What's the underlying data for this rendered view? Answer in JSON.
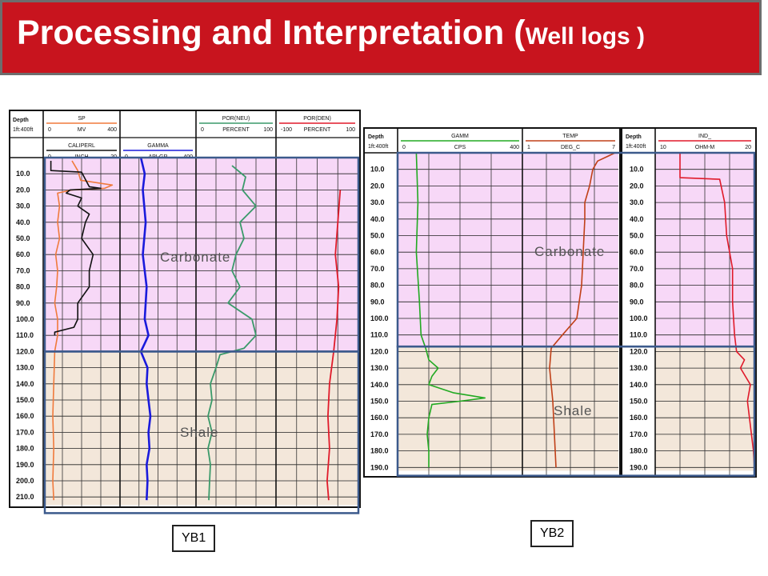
{
  "title": {
    "main": "Processing and Interpretation",
    "paren_open": " (",
    "sub": "Well logs )"
  },
  "labels": {
    "yb1": "YB1",
    "yb2": "YB2"
  },
  "colors": {
    "title_bg": "#c8141e",
    "carbonate_zone": "#f7d8f7",
    "shale_zone": "#f3e7da",
    "zone_box": "#3c5a8c",
    "sp": "#f07a3c",
    "caliper": "#111111",
    "gamma_yb1": "#1a1adc",
    "por_neu": "#3a9a6a",
    "por_den": "#e01a2a",
    "gamma_yb2": "#22aa22",
    "temp": "#c04018",
    "ind": "#e01a2a"
  },
  "chart_data": [
    {
      "type": "line",
      "name": "YB1",
      "depth_unit": "ft",
      "depth_labels": [
        "10.0",
        "20.0",
        "30.0",
        "40.0",
        "50.0",
        "60.0",
        "70.0",
        "80.0",
        "90.0",
        "100.0",
        "110.0",
        "120.0",
        "130.0",
        "140.0",
        "150.0",
        "160.0",
        "170.0",
        "180.0",
        "190.0",
        "200.0",
        "210.0"
      ],
      "header": {
        "depth": "Depth",
        "scale": "1ft:400ft",
        "track1": [
          {
            "name": "SP",
            "min": "0",
            "unit": "MV",
            "max": "400"
          },
          {
            "name": "CALIPERL",
            "min": "0",
            "unit": "INCH",
            "max": "20"
          }
        ],
        "track2": [
          {
            "name": "GAMMA",
            "min": "0",
            "unit": "API-GR",
            "max": "400"
          }
        ],
        "track3": [
          {
            "name": "POR(NEU)",
            "min": "0",
            "unit": "PERCENT",
            "max": "100"
          },
          {
            "name": "POR(DEN)",
            "min": "-100",
            "unit": "PERCENT",
            "max": "100"
          }
        ]
      },
      "zones": [
        {
          "name": "Carbonate",
          "top": 0,
          "base": 120
        },
        {
          "name": "Shale",
          "top": 120,
          "base": 215
        }
      ],
      "series": [
        {
          "name": "SP",
          "track": 1,
          "points": [
            [
              2,
              150
            ],
            [
              8,
              180
            ],
            [
              14,
              195
            ],
            [
              17,
              360
            ],
            [
              19,
              320
            ],
            [
              20,
              150
            ],
            [
              22,
              75
            ],
            [
              30,
              85
            ],
            [
              40,
              75
            ],
            [
              50,
              85
            ],
            [
              60,
              65
            ],
            [
              70,
              75
            ],
            [
              80,
              70
            ],
            [
              90,
              60
            ],
            [
              100,
              75
            ],
            [
              110,
              75
            ],
            [
              120,
              60
            ],
            [
              140,
              55
            ],
            [
              160,
              50
            ],
            [
              180,
              55
            ],
            [
              200,
              50
            ],
            [
              212,
              55
            ]
          ]
        },
        {
          "name": "CALIPERL",
          "track": 1,
          "points": [
            [
              2,
              2
            ],
            [
              8,
              2
            ],
            [
              9,
              10
            ],
            [
              18,
              12
            ],
            [
              19,
              15
            ],
            [
              20,
              7
            ],
            [
              22,
              6
            ],
            [
              25,
              10
            ],
            [
              30,
              9
            ],
            [
              35,
              12
            ],
            [
              40,
              11
            ],
            [
              50,
              10
            ],
            [
              60,
              13
            ],
            [
              70,
              12
            ],
            [
              80,
              12
            ],
            [
              90,
              9
            ],
            [
              100,
              9
            ],
            [
              105,
              8
            ],
            [
              108,
              3
            ],
            [
              110,
              3
            ]
          ]
        },
        {
          "name": "GAMMA",
          "track": 2,
          "points": [
            [
              0,
              110
            ],
            [
              10,
              130
            ],
            [
              20,
              120
            ],
            [
              40,
              135
            ],
            [
              60,
              120
            ],
            [
              80,
              140
            ],
            [
              100,
              130
            ],
            [
              110,
              150
            ],
            [
              115,
              130
            ],
            [
              120,
              110
            ],
            [
              130,
              145
            ],
            [
              140,
              140
            ],
            [
              150,
              150
            ],
            [
              160,
              160
            ],
            [
              170,
              150
            ],
            [
              180,
              155
            ],
            [
              190,
              140
            ],
            [
              200,
              145
            ],
            [
              212,
              140
            ]
          ]
        },
        {
          "name": "POR(NEU)",
          "track": 3,
          "points": [
            [
              5,
              45
            ],
            [
              12,
              62
            ],
            [
              20,
              58
            ],
            [
              30,
              75
            ],
            [
              40,
              55
            ],
            [
              50,
              60
            ],
            [
              60,
              50
            ],
            [
              70,
              45
            ],
            [
              80,
              55
            ],
            [
              90,
              40
            ],
            [
              100,
              70
            ],
            [
              110,
              75
            ],
            [
              118,
              60
            ],
            [
              122,
              30
            ],
            [
              130,
              25
            ],
            [
              140,
              18
            ],
            [
              150,
              20
            ],
            [
              160,
              15
            ],
            [
              170,
              20
            ],
            [
              180,
              15
            ],
            [
              190,
              18
            ],
            [
              200,
              17
            ],
            [
              212,
              16
            ]
          ]
        },
        {
          "name": "POR(DEN)",
          "track": 3,
          "points": [
            [
              20,
              78
            ],
            [
              40,
              75
            ],
            [
              60,
              72
            ],
            [
              80,
              76
            ],
            [
              100,
              74
            ],
            [
              120,
              70
            ],
            [
              140,
              65
            ],
            [
              160,
              63
            ],
            [
              180,
              65
            ],
            [
              200,
              62
            ],
            [
              212,
              64
            ]
          ]
        }
      ]
    },
    {
      "type": "line",
      "name": "YB2",
      "depth_unit": "ft",
      "depth_labels": [
        "10.0",
        "20.0",
        "30.0",
        "40.0",
        "50.0",
        "60.0",
        "70.0",
        "80.0",
        "90.0",
        "100.0",
        "110.0",
        "120.0",
        "130.0",
        "140.0",
        "150.0",
        "160.0",
        "170.0",
        "180.0",
        "190.0"
      ],
      "header": {
        "depth": "Depth",
        "scale": "1ft:400ft",
        "track1": [
          {
            "name": "GAMM",
            "min": "0",
            "unit": "CPS",
            "max": "400"
          }
        ],
        "track2": [
          {
            "name": "TEMP",
            "min": "1",
            "unit": "DEG_C",
            "max": "7"
          }
        ],
        "track3": [
          {
            "name": "IND_",
            "min": "10",
            "unit": "OHM-M",
            "max": "20"
          }
        ]
      },
      "zones": [
        {
          "name": "Carbonate",
          "top": 0,
          "base": 117
        },
        {
          "name": "Shale",
          "top": 117,
          "base": 192
        }
      ],
      "series": [
        {
          "name": "GAMM",
          "track": 1,
          "points": [
            [
              0,
              60
            ],
            [
              30,
              65
            ],
            [
              60,
              60
            ],
            [
              90,
              70
            ],
            [
              110,
              75
            ],
            [
              118,
              90
            ],
            [
              125,
              100
            ],
            [
              130,
              130
            ],
            [
              135,
              110
            ],
            [
              140,
              100
            ],
            [
              145,
              180
            ],
            [
              148,
              280
            ],
            [
              150,
              200
            ],
            [
              152,
              110
            ],
            [
              160,
              100
            ],
            [
              170,
              95
            ],
            [
              180,
              100
            ],
            [
              190,
              100
            ]
          ]
        },
        {
          "name": "TEMP",
          "track": 2,
          "points": [
            [
              0,
              6.8
            ],
            [
              5,
              5.7
            ],
            [
              10,
              5.4
            ],
            [
              20,
              5.2
            ],
            [
              30,
              4.9
            ],
            [
              40,
              4.9
            ],
            [
              60,
              4.8
            ],
            [
              80,
              4.7
            ],
            [
              100,
              4.4
            ],
            [
              110,
              3.5
            ],
            [
              118,
              2.8
            ],
            [
              130,
              2.7
            ],
            [
              150,
              2.9
            ],
            [
              170,
              3.0
            ],
            [
              190,
              3.1
            ]
          ]
        },
        {
          "name": "IND_",
          "track": 3,
          "points": [
            [
              0,
              12.5
            ],
            [
              15,
              12.5
            ],
            [
              16,
              16.5
            ],
            [
              30,
              17.0
            ],
            [
              50,
              17.2
            ],
            [
              70,
              17.8
            ],
            [
              90,
              17.8
            ],
            [
              110,
              18.0
            ],
            [
              120,
              18.2
            ],
            [
              125,
              19.0
            ],
            [
              130,
              18.6
            ],
            [
              140,
              19.6
            ],
            [
              150,
              19.3
            ],
            [
              160,
              19.5
            ],
            [
              170,
              19.7
            ],
            [
              180,
              19.9
            ],
            [
              190,
              20.0
            ]
          ]
        }
      ]
    }
  ],
  "zone_labels": {
    "yb1_carbonate": "Carbonate",
    "yb1_shale": "Shale",
    "yb2_carbonate": "Carbonate",
    "yb2_shale": "Shale"
  }
}
